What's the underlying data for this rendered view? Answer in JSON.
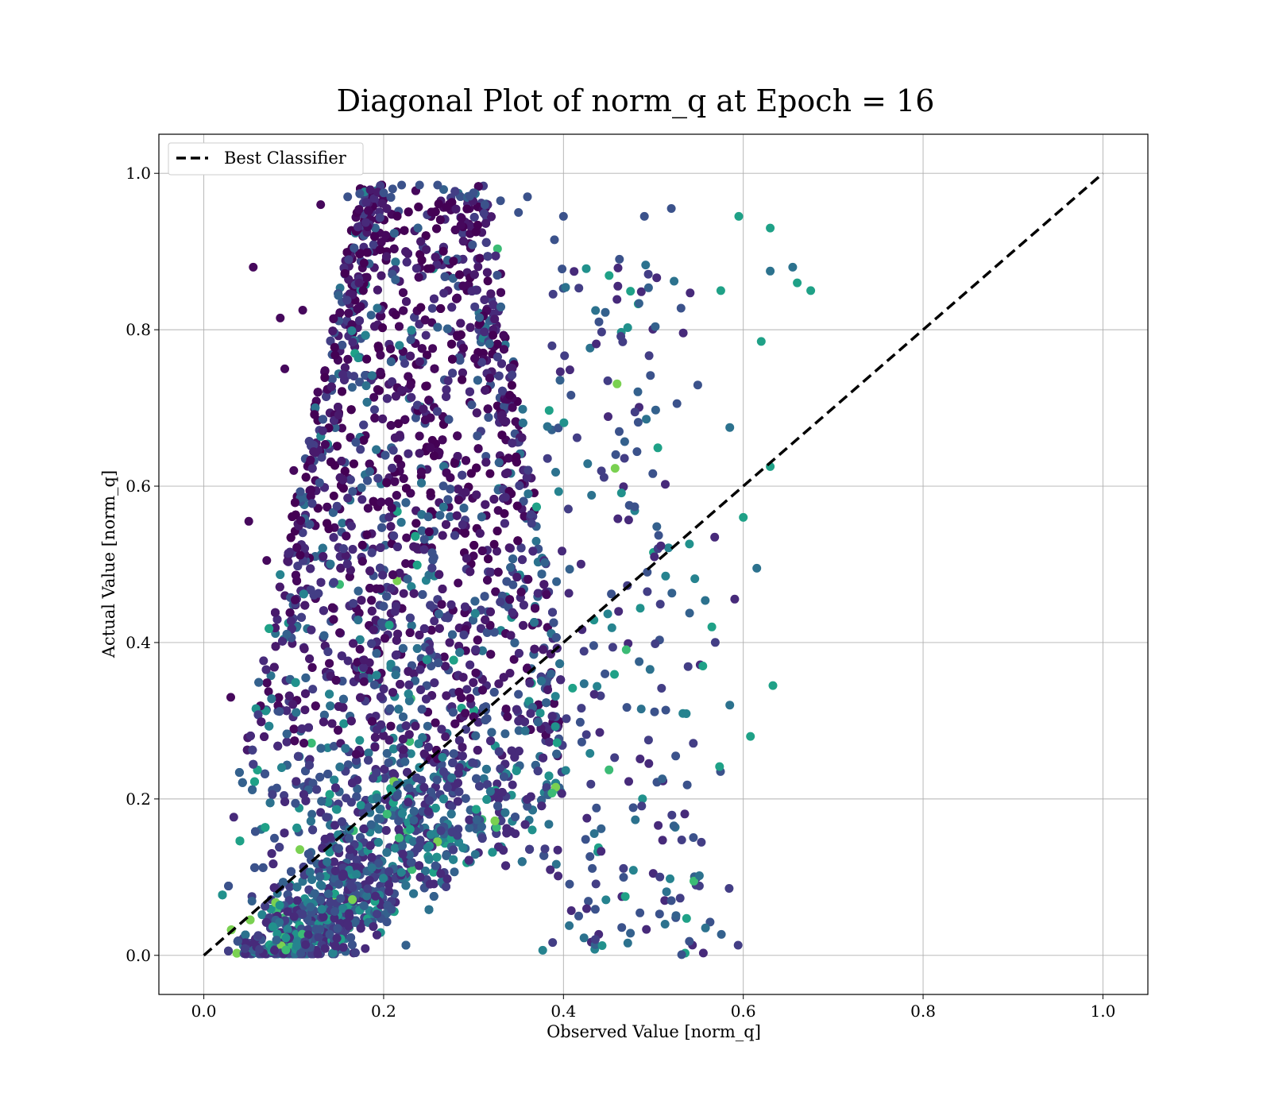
{
  "chart_data": {
    "type": "scatter",
    "title": "Diagonal Plot of norm_q at Epoch = 16",
    "xlabel": "Observed Value [norm_q]",
    "ylabel": "Actual Value [norm_q]",
    "xlim": [
      -0.05,
      1.05
    ],
    "ylim": [
      -0.05,
      1.05
    ],
    "xticks": [
      "0.0",
      "0.2",
      "0.4",
      "0.6",
      "0.8",
      "1.0"
    ],
    "yticks": [
      "0.0",
      "0.2",
      "0.4",
      "0.6",
      "0.8",
      "1.0"
    ],
    "grid": true,
    "legend_position": "top-left",
    "colormap": "viridis",
    "series": [
      {
        "name": "Best Classifier",
        "kind": "line",
        "style": "dashed",
        "color": "#000000",
        "x": [
          0.0,
          1.0
        ],
        "y": [
          0.0,
          1.0
        ]
      }
    ],
    "scatter_points": {
      "note_color": "viridis (dark purple to teal, rare yellow)",
      "x": [
        0.055,
        0.13,
        0.16,
        0.2,
        0.21,
        0.22,
        0.24,
        0.26,
        0.3,
        0.33,
        0.35,
        0.36,
        0.39,
        0.4,
        0.49,
        0.52,
        0.595,
        0.63,
        0.655,
        0.66,
        0.675,
        0.63,
        0.62,
        0.575,
        0.585,
        0.6,
        0.63,
        0.615,
        0.565,
        0.555,
        0.585,
        0.608,
        0.633,
        0.558,
        0.54,
        0.52,
        0.05,
        0.03,
        0.07,
        0.11,
        0.085,
        0.09,
        0.1
      ],
      "y": [
        0.88,
        0.96,
        0.97,
        0.975,
        0.98,
        0.985,
        0.985,
        0.985,
        0.975,
        0.965,
        0.95,
        0.97,
        0.915,
        0.945,
        0.945,
        0.955,
        0.945,
        0.93,
        0.88,
        0.86,
        0.85,
        0.875,
        0.785,
        0.85,
        0.675,
        0.56,
        0.625,
        0.495,
        0.42,
        0.37,
        0.32,
        0.28,
        0.345,
        0.035,
        0.018,
        0.07,
        0.555,
        0.33,
        0.505,
        0.825,
        0.815,
        0.75,
        0.62
      ]
    }
  }
}
